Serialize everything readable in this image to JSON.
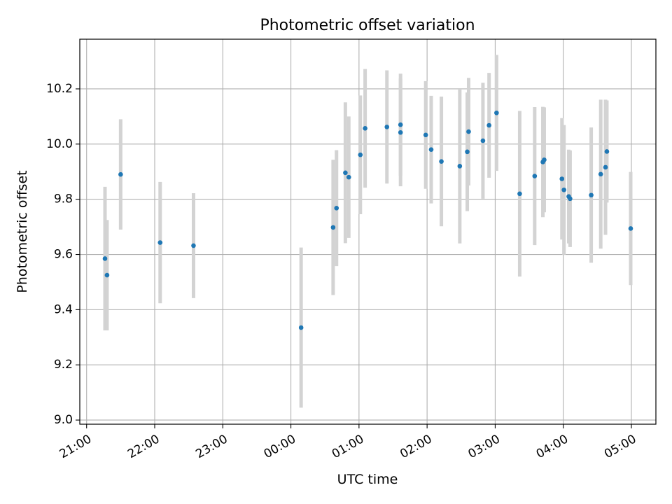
{
  "chart_data": {
    "type": "scatter",
    "title": "Photometric offset variation",
    "xlabel": "UTC time",
    "ylabel": "Photometric offset",
    "x_unit": "hours",
    "xlim": [
      20.9,
      29.36
    ],
    "ylim": [
      8.985,
      10.38
    ],
    "x_ticks": [
      21,
      22,
      23,
      24,
      25,
      26,
      27,
      28,
      29
    ],
    "x_tick_labels": [
      "21:00",
      "22:00",
      "23:00",
      "00:00",
      "01:00",
      "02:00",
      "03:00",
      "04:00",
      "05:00"
    ],
    "y_ticks": [
      9.0,
      9.2,
      9.4,
      9.6,
      9.8,
      10.0,
      10.2
    ],
    "y_tick_labels": [
      "9.0",
      "9.2",
      "9.4",
      "9.6",
      "9.8",
      "10.0",
      "10.2"
    ],
    "grid": true,
    "marker_color": "#1f77b4",
    "errorbar_color": "#d3d3d3",
    "points": [
      {
        "x": 21.27,
        "y": 9.585,
        "err": 0.26
      },
      {
        "x": 21.3,
        "y": 9.525,
        "err": 0.2
      },
      {
        "x": 21.5,
        "y": 9.89,
        "err": 0.2
      },
      {
        "x": 22.08,
        "y": 9.643,
        "err": 0.22
      },
      {
        "x": 22.57,
        "y": 9.632,
        "err": 0.19
      },
      {
        "x": 24.15,
        "y": 9.335,
        "err": 0.29
      },
      {
        "x": 24.62,
        "y": 9.698,
        "err": 0.245
      },
      {
        "x": 24.67,
        "y": 9.768,
        "err": 0.21
      },
      {
        "x": 24.8,
        "y": 9.896,
        "err": 0.255
      },
      {
        "x": 24.85,
        "y": 9.88,
        "err": 0.22
      },
      {
        "x": 25.02,
        "y": 9.961,
        "err": 0.215
      },
      {
        "x": 25.09,
        "y": 10.057,
        "err": 0.215
      },
      {
        "x": 25.41,
        "y": 10.062,
        "err": 0.205
      },
      {
        "x": 25.61,
        "y": 10.07,
        "err": 0.185
      },
      {
        "x": 25.61,
        "y": 10.042,
        "err": 0.195
      },
      {
        "x": 25.98,
        "y": 10.033,
        "err": 0.195
      },
      {
        "x": 26.06,
        "y": 9.98,
        "err": 0.195
      },
      {
        "x": 26.21,
        "y": 9.937,
        "err": 0.235
      },
      {
        "x": 26.48,
        "y": 9.92,
        "err": 0.28
      },
      {
        "x": 26.59,
        "y": 9.972,
        "err": 0.215
      },
      {
        "x": 26.61,
        "y": 10.045,
        "err": 0.195
      },
      {
        "x": 26.82,
        "y": 10.012,
        "err": 0.21
      },
      {
        "x": 26.91,
        "y": 10.068,
        "err": 0.19
      },
      {
        "x": 27.02,
        "y": 10.113,
        "err": 0.21
      },
      {
        "x": 27.36,
        "y": 9.82,
        "err": 0.3
      },
      {
        "x": 27.58,
        "y": 9.884,
        "err": 0.25
      },
      {
        "x": 27.7,
        "y": 9.935,
        "err": 0.2
      },
      {
        "x": 27.72,
        "y": 9.943,
        "err": 0.19
      },
      {
        "x": 27.98,
        "y": 9.874,
        "err": 0.22
      },
      {
        "x": 28.01,
        "y": 9.834,
        "err": 0.235
      },
      {
        "x": 28.08,
        "y": 9.81,
        "err": 0.17
      },
      {
        "x": 28.1,
        "y": 9.802,
        "err": 0.175
      },
      {
        "x": 28.41,
        "y": 9.815,
        "err": 0.245
      },
      {
        "x": 28.55,
        "y": 9.891,
        "err": 0.27
      },
      {
        "x": 28.62,
        "y": 9.916,
        "err": 0.245
      },
      {
        "x": 28.64,
        "y": 9.973,
        "err": 0.185
      },
      {
        "x": 28.99,
        "y": 9.694,
        "err": 0.205
      }
    ]
  }
}
